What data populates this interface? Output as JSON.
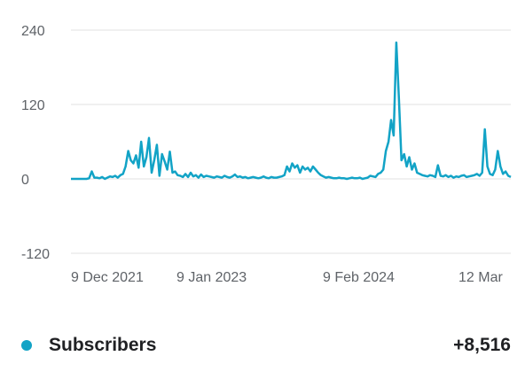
{
  "chart_data": {
    "type": "line",
    "ylim": [
      -120,
      240
    ],
    "yticks": [
      -120,
      0,
      120,
      240
    ],
    "xtick_labels": [
      "9 Dec 2021",
      "9 Jan 2023",
      "9 Feb 2024",
      "12 Mar"
    ],
    "grid": true,
    "series": [
      {
        "name": "Subscribers",
        "color": "#12a3c6",
        "total": "+8,516",
        "values": [
          0,
          0,
          0,
          0,
          0,
          0,
          0,
          1,
          12,
          2,
          2,
          1,
          3,
          0,
          2,
          4,
          3,
          5,
          2,
          6,
          8,
          20,
          45,
          30,
          25,
          38,
          18,
          60,
          20,
          35,
          66,
          10,
          30,
          55,
          5,
          40,
          28,
          15,
          44,
          10,
          12,
          6,
          5,
          3,
          8,
          3,
          10,
          4,
          6,
          2,
          7,
          3,
          5,
          4,
          3,
          2,
          4,
          3,
          2,
          5,
          3,
          2,
          4,
          7,
          3,
          4,
          2,
          3,
          1,
          2,
          3,
          2,
          1,
          2,
          4,
          2,
          1,
          3,
          2,
          2,
          3,
          4,
          6,
          20,
          12,
          25,
          18,
          22,
          10,
          20,
          15,
          18,
          12,
          20,
          15,
          10,
          6,
          4,
          2,
          3,
          2,
          1,
          1,
          2,
          1,
          1,
          0,
          1,
          2,
          1,
          1,
          2,
          0,
          1,
          2,
          5,
          4,
          3,
          8,
          10,
          15,
          45,
          60,
          95,
          70,
          220,
          130,
          30,
          40,
          20,
          35,
          15,
          25,
          10,
          8,
          6,
          5,
          4,
          6,
          5,
          3,
          22,
          5,
          4,
          6,
          3,
          5,
          2,
          4,
          3,
          5,
          6,
          3,
          4,
          5,
          6,
          8,
          5,
          10,
          80,
          20,
          8,
          6,
          15,
          45,
          20,
          8,
          12,
          5,
          3
        ]
      }
    ]
  },
  "legend": {
    "label": "Subscribers",
    "value": "+8,516"
  }
}
